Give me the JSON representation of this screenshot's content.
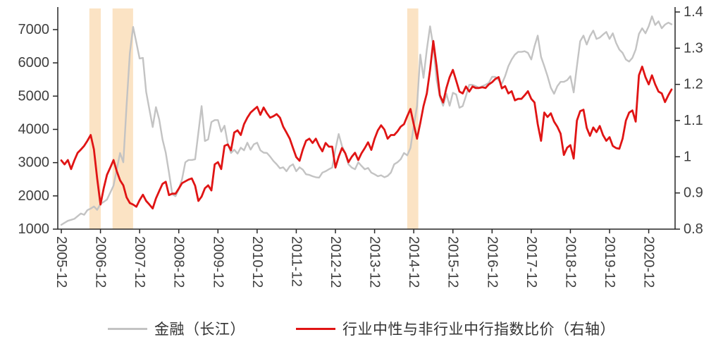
{
  "chart_data": {
    "type": "line",
    "title": "",
    "x_axis": {
      "start": "2005-12",
      "frequency": "monthly",
      "tick_labels": [
        "2005-12",
        "2006-12",
        "2007-12",
        "2008-12",
        "2009-12",
        "2010-12",
        "2011-12",
        "2012-12",
        "2013-12",
        "2014-12",
        "2015-12",
        "2016-12",
        "2017-12",
        "2018-12",
        "2019-12",
        "2020-12"
      ]
    },
    "y_axis_left": {
      "ticks": [
        1000,
        2000,
        3000,
        4000,
        5000,
        6000,
        7000
      ],
      "min": 1000
    },
    "y_axis_right": {
      "tick_labels": [
        "0.8",
        "0.9",
        "1",
        "1.1",
        "1.2",
        "1.3",
        "1.4"
      ],
      "min": 0.8,
      "max": 1.4
    },
    "highlight_bands": {
      "color": "#fbe3c4",
      "ranges_months_from_start": [
        [
          8.6,
          12.1
        ],
        [
          15.7,
          22.0
        ],
        [
          106.0,
          109.4
        ]
      ]
    },
    "series": [
      {
        "name": "金融（长江）",
        "axis": "left",
        "color": "#c3c3c3",
        "values": [
          1130,
          1190,
          1250,
          1280,
          1310,
          1390,
          1470,
          1430,
          1570,
          1620,
          1680,
          1580,
          1760,
          1820,
          1890,
          2100,
          2310,
          2800,
          3290,
          3010,
          4710,
          6300,
          7080,
          6610,
          6130,
          6150,
          5130,
          4600,
          4070,
          4670,
          4300,
          3700,
          3300,
          2700,
          2050,
          1990,
          2200,
          2500,
          3010,
          3080,
          3080,
          3100,
          3900,
          4700,
          3650,
          3700,
          4220,
          4280,
          4280,
          3930,
          4110,
          3580,
          3290,
          3390,
          3270,
          3450,
          3370,
          3600,
          3390,
          3550,
          3600,
          3370,
          3300,
          3290,
          3180,
          3050,
          2950,
          2830,
          2860,
          2740,
          2890,
          2950,
          2740,
          2860,
          2790,
          2650,
          2630,
          2590,
          2560,
          2550,
          2700,
          2740,
          2800,
          2850,
          3400,
          3860,
          3500,
          3290,
          2950,
          2850,
          2800,
          3010,
          2900,
          2800,
          2840,
          2700,
          2650,
          2590,
          2620,
          2560,
          2600,
          2700,
          2950,
          3010,
          3100,
          3290,
          3220,
          3440,
          4100,
          4700,
          6250,
          5550,
          6400,
          7100,
          6500,
          5490,
          4980,
          4710,
          5070,
          4710,
          5100,
          5050,
          4650,
          4700,
          5000,
          5340,
          5340,
          5300,
          5250,
          5300,
          5340,
          5400,
          5580,
          5580,
          5480,
          5370,
          5600,
          5900,
          6100,
          6250,
          6330,
          6330,
          6350,
          6300,
          6100,
          6500,
          6820,
          6180,
          5900,
          5600,
          5250,
          5070,
          5300,
          5430,
          5430,
          5480,
          5600,
          5110,
          5900,
          6650,
          6820,
          6550,
          6800,
          6970,
          6720,
          6760,
          6850,
          6930,
          6720,
          6890,
          6600,
          6400,
          6300,
          6100,
          6040,
          6150,
          6400,
          6870,
          7040,
          6890,
          7100,
          7400,
          7140,
          7250,
          7040,
          7150,
          7210,
          7160
        ]
      },
      {
        "name": "行业中性与非行业中行指数比价（右轴）",
        "axis": "right",
        "color": "#e01414",
        "values": [
          0.99,
          0.979,
          0.991,
          0.966,
          0.99,
          1.011,
          1.02,
          1.03,
          1.044,
          1.06,
          1.02,
          0.94,
          0.868,
          0.913,
          0.95,
          0.97,
          0.991,
          0.96,
          0.935,
          0.921,
          0.888,
          0.872,
          0.868,
          0.862,
          0.88,
          0.895,
          0.878,
          0.868,
          0.857,
          0.885,
          0.905,
          0.925,
          0.931,
          0.894,
          0.898,
          0.898,
          0.912,
          0.927,
          0.932,
          0.937,
          0.94,
          0.92,
          0.878,
          0.89,
          0.913,
          0.921,
          0.907,
          0.979,
          0.985,
          0.966,
          1.03,
          1.034,
          1.018,
          1.067,
          1.073,
          1.06,
          1.09,
          1.108,
          1.122,
          1.13,
          1.138,
          1.116,
          1.136,
          1.12,
          1.108,
          1.112,
          1.118,
          1.108,
          1.083,
          1.067,
          1.05,
          1.024,
          0.999,
          0.989,
          1.02,
          1.044,
          1.05,
          1.038,
          1.05,
          1.03,
          1.015,
          1.038,
          1.028,
          1.028,
          0.97,
          1.0,
          1.024,
          1.01,
          0.985,
          1.0,
          1.011,
          0.991,
          1.01,
          1.024,
          1.04,
          1.019,
          1.05,
          1.073,
          1.087,
          1.075,
          1.05,
          1.06,
          1.06,
          1.07,
          1.083,
          1.09,
          1.112,
          1.132,
          1.09,
          1.05,
          1.093,
          1.14,
          1.175,
          1.24,
          1.32,
          1.25,
          1.17,
          1.15,
          1.19,
          1.22,
          1.24,
          1.21,
          1.18,
          1.175,
          1.194,
          1.18,
          1.194,
          1.19,
          1.19,
          1.192,
          1.19,
          1.2,
          1.206,
          1.215,
          1.22,
          1.189,
          1.195,
          1.175,
          1.181,
          1.156,
          1.16,
          1.16,
          1.17,
          1.181,
          1.16,
          1.15,
          1.09,
          1.044,
          1.122,
          1.11,
          1.12,
          1.097,
          1.083,
          1.064,
          1.005,
          1.025,
          1.032,
          0.995,
          1.1,
          1.126,
          1.13,
          1.08,
          1.058,
          1.081,
          1.068,
          1.085,
          1.06,
          1.044,
          1.054,
          1.03,
          1.024,
          1.022,
          1.05,
          1.1,
          1.122,
          1.128,
          1.097,
          1.225,
          1.249,
          1.22,
          1.2,
          1.225,
          1.2,
          1.18,
          1.175,
          1.151,
          1.17,
          1.186
        ]
      }
    ],
    "legend": {
      "position": "bottom",
      "items": [
        "金融（长江）",
        "行业中性与非行业中行指数比价（右轴）"
      ]
    },
    "style": {
      "axis_color": "#262626",
      "label_color": "#3f3f3f",
      "background": "#ffffff"
    }
  }
}
